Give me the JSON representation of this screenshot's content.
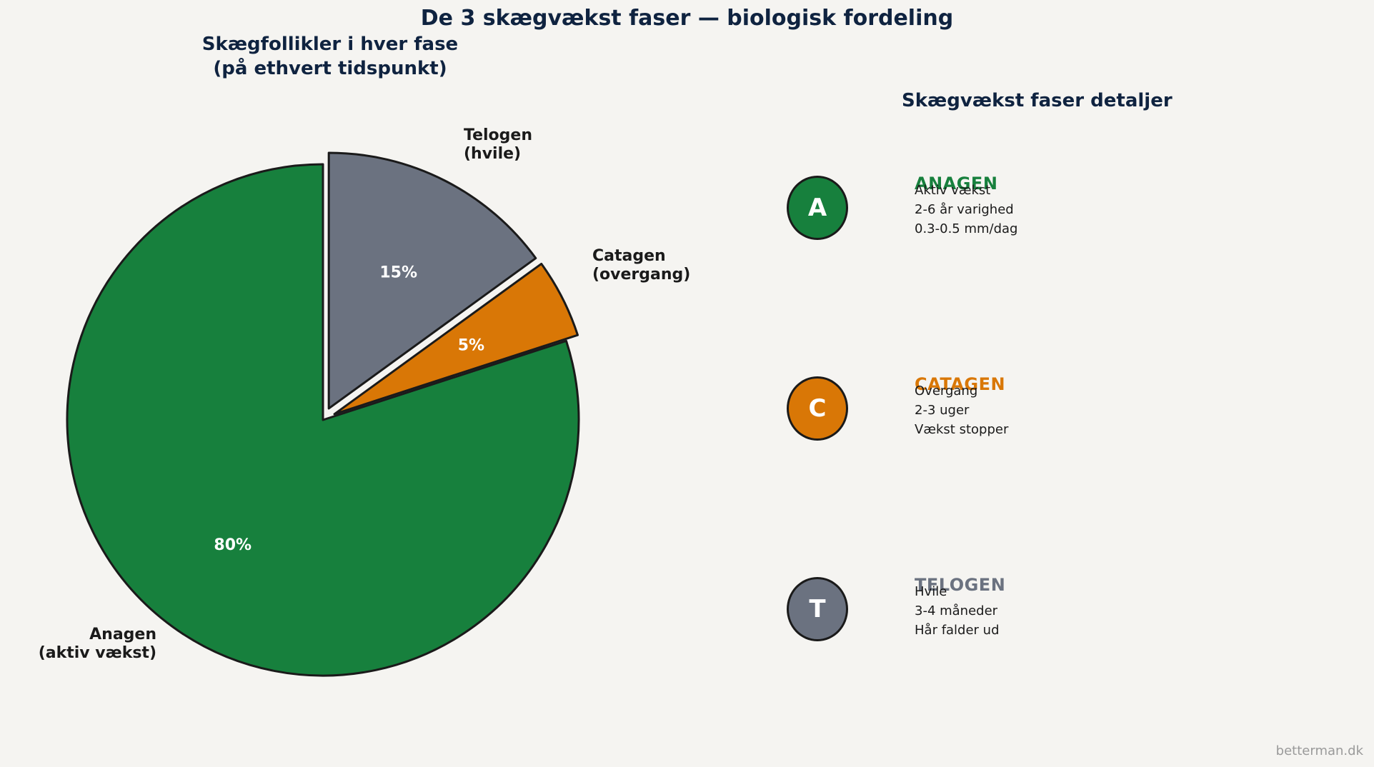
{
  "chart_data": {
    "type": "pie",
    "title": "De 3 skægvækst faser — biologisk fordeling",
    "subtitle": "Skægfollikler i hver fase\n(på ethvert tidspunkt)",
    "slices": [
      {
        "name": "Anagen\n(aktiv vækst)",
        "value": 80,
        "label": "80%",
        "color": "#17803d",
        "explode": false
      },
      {
        "name": "Catagen\n(overgang)",
        "value": 5,
        "label": "5%",
        "color": "#d97706",
        "explode": true
      },
      {
        "name": "Telogen\n(hvile)",
        "value": 15,
        "label": "15%",
        "color": "#6b7280",
        "explode": true
      }
    ]
  },
  "details": {
    "title": "Skægvækst faser detaljer",
    "phases": [
      {
        "letter": "A",
        "name": "ANAGEN",
        "color": "#17803d",
        "lines": [
          "Aktiv vækst",
          "2-6 år varighed",
          "0.3-0.5 mm/dag"
        ]
      },
      {
        "letter": "C",
        "name": "CATAGEN",
        "color": "#d97706",
        "lines": [
          "Overgang",
          "2-3 uger",
          "Vækst stopper"
        ]
      },
      {
        "letter": "T",
        "name": "TELOGEN",
        "color": "#6b7280",
        "lines": [
          "Hvile",
          "3-4 måneder",
          "Hår falder ud"
        ]
      }
    ]
  },
  "watermark": "betterman.dk"
}
